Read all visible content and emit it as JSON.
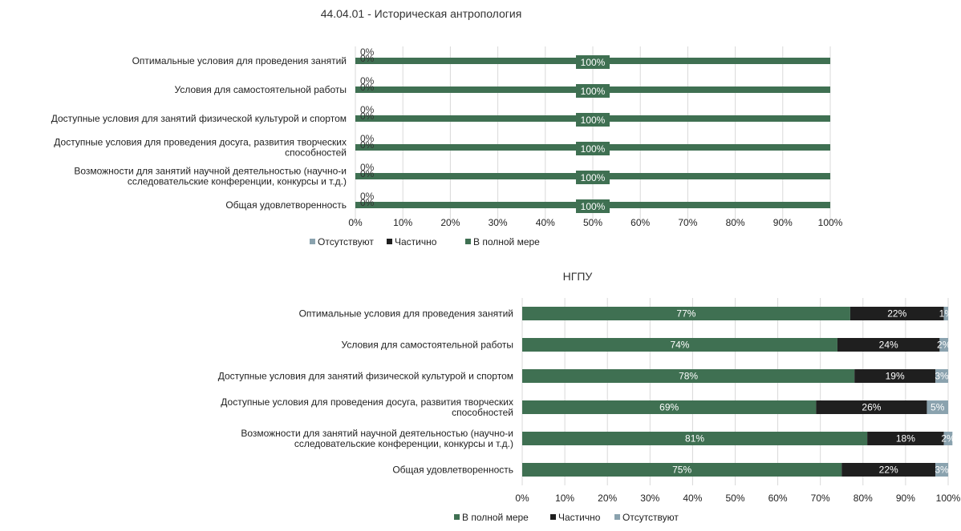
{
  "colors": {
    "full": "#3f7052",
    "partial": "#1f1f1f",
    "absent": "#8aa2ae",
    "label_bg": "#3f7052"
  },
  "chart_data": [
    {
      "type": "bar",
      "orientation": "horizontal",
      "stacked": true,
      "title": "44.04.01 - Историческая антропология",
      "categories": [
        "Оптимальные условия для проведения занятий",
        "Условия для самостоятельной работы",
        "Доступные условия для занятий физической культурой и спортом",
        "Доступные условия для проведения досуга, развития творческих способностей",
        "Возможности для занятий научной деятельностью (научно-исследовательские конференции, конкурсы и т.д.)",
        "Общая удовлетворенность"
      ],
      "series": [
        {
          "name": "Отсутствуют",
          "key": "absent",
          "values": [
            0,
            0,
            0,
            0,
            0,
            0
          ]
        },
        {
          "name": "Частично",
          "key": "partial",
          "values": [
            0,
            0,
            0,
            0,
            0,
            0
          ]
        },
        {
          "name": "В полной мере",
          "key": "full",
          "values": [
            100,
            100,
            100,
            100,
            100,
            100
          ]
        }
      ],
      "data_labels": {
        "absent": [
          "0%",
          "0%",
          "0%",
          "0%",
          "0%",
          "0%"
        ],
        "partial": [
          "0%",
          "0%",
          "0%",
          "0%",
          "0%",
          "0%"
        ],
        "full": [
          "100%",
          "100%",
          "100%",
          "100%",
          "100%",
          "100%"
        ]
      },
      "xlim": [
        0,
        100
      ],
      "xticks": [
        "0%",
        "10%",
        "20%",
        "30%",
        "40%",
        "50%",
        "60%",
        "70%",
        "80%",
        "90%",
        "100%"
      ],
      "legend_position": "bottom",
      "grid": true
    },
    {
      "type": "bar",
      "orientation": "horizontal",
      "stacked": true,
      "title": "НГПУ",
      "categories": [
        "Оптимальные условия для проведения занятий",
        "Условия для самостоятельной работы",
        "Доступные условия для занятий физической культурой и спортом",
        "Доступные условия для проведения досуга, развития творческих способностей",
        "Возможности для занятий научной деятельностью (научно-исследовательские конференции, конкурсы и т.д.)",
        "Общая удовлетворенность"
      ],
      "series": [
        {
          "name": "В полной мере",
          "key": "full",
          "values": [
            77,
            74,
            78,
            69,
            81,
            75
          ]
        },
        {
          "name": "Частично",
          "key": "partial",
          "values": [
            22,
            24,
            19,
            26,
            18,
            22
          ]
        },
        {
          "name": "Отсутствуют",
          "key": "absent",
          "values": [
            1,
            2,
            3,
            5,
            2,
            3
          ]
        }
      ],
      "data_labels": {
        "full": [
          "77%",
          "74%",
          "78%",
          "69%",
          "81%",
          "75%"
        ],
        "partial": [
          "22%",
          "24%",
          "19%",
          "26%",
          "18%",
          "22%"
        ],
        "absent": [
          "1%",
          "2%",
          "3%",
          "5%",
          "2%",
          "3%"
        ]
      },
      "xlim": [
        0,
        100
      ],
      "xticks": [
        "0%",
        "10%",
        "20%",
        "30%",
        "40%",
        "50%",
        "60%",
        "70%",
        "80%",
        "90%",
        "100%"
      ],
      "legend_position": "bottom",
      "grid": true
    }
  ]
}
